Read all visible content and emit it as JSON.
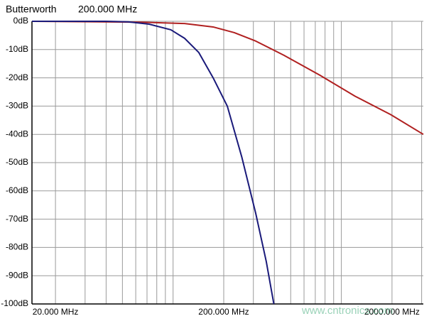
{
  "chart_data": {
    "type": "line",
    "title": "Butterworth",
    "subtitle": "200.000 MHz",
    "xscale": "log",
    "grid": true,
    "xlim": [
      14.5,
      3070
    ],
    "xticks": [
      {
        "value": 20,
        "label": "20.000 MHz"
      },
      {
        "value": 200,
        "label": "200.000 MHz"
      },
      {
        "value": 2000,
        "label": "2000.000 MHz"
      }
    ],
    "xgrid": [
      20,
      30,
      40,
      50,
      60,
      70,
      80,
      90,
      100,
      200,
      300,
      400,
      500,
      600,
      700,
      800,
      900,
      1000,
      2000,
      3000
    ],
    "ylim": [
      -100,
      0
    ],
    "yticks": [
      {
        "value": 0,
        "label": "0dB"
      },
      {
        "value": -10,
        "label": "-10dB"
      },
      {
        "value": -20,
        "label": "-20dB"
      },
      {
        "value": -30,
        "label": "-30dB"
      },
      {
        "value": -40,
        "label": "-40dB"
      },
      {
        "value": -50,
        "label": "-50dB"
      },
      {
        "value": -60,
        "label": "-60dB"
      },
      {
        "value": -70,
        "label": "-70dB"
      },
      {
        "value": -80,
        "label": "-80dB"
      },
      {
        "value": -90,
        "label": "-90dB"
      },
      {
        "value": -100,
        "label": "-100dB"
      }
    ],
    "series": [
      {
        "color": "#b02020",
        "x": [
          14.5,
          65,
          117,
          173,
          231,
          310,
          455,
          742,
          1207,
          1965,
          3070
        ],
        "values": [
          0,
          -0.3,
          -0.8,
          -2,
          -4,
          -7,
          -12,
          -19,
          -26.5,
          -33,
          -40
        ]
      },
      {
        "color": "#1a1a7a",
        "x": [
          14.5,
          40,
          54,
          72,
          97,
          117,
          142,
          173,
          210,
          256,
          310,
          358,
          397
        ],
        "values": [
          0,
          0,
          -0.2,
          -1,
          -3,
          -6,
          -11,
          -20,
          -30,
          -48,
          -68,
          -85,
          -100
        ]
      }
    ],
    "watermark": "www.cntronics.com"
  }
}
